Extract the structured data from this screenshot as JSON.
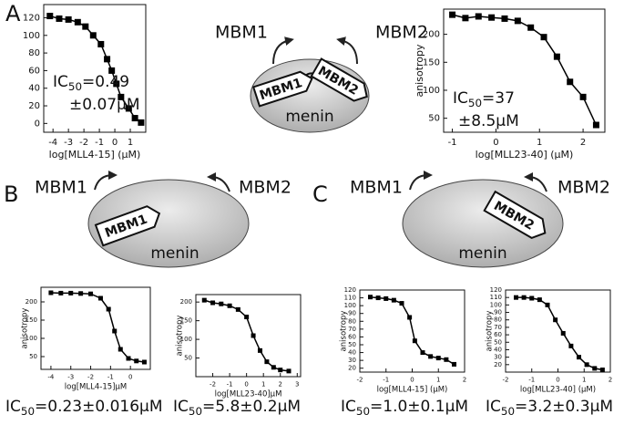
{
  "panels": [
    "A",
    "B",
    "C"
  ],
  "diagrams": [
    {
      "labels": [
        "MBM1",
        "MBM2"
      ],
      "body": "menin",
      "bound": [
        "MBM1",
        "MBM2"
      ]
    },
    {
      "labels": [
        "MBM1",
        "MBM2"
      ],
      "body": "menin",
      "bound": [
        "MBM1"
      ]
    },
    {
      "labels": [
        "MBM1",
        "MBM2"
      ],
      "body": "menin",
      "bound": [
        "MBM2"
      ]
    }
  ],
  "chart_data": [
    {
      "type": "line",
      "marker": "square",
      "color": "#000000",
      "xlabel": "log[MLL4-15] (μM)",
      "x": [
        -4.2,
        -3.6,
        -3.0,
        -2.4,
        -1.9,
        -1.4,
        -0.9,
        -0.5,
        -0.2,
        0.1,
        0.4,
        0.9,
        1.3,
        1.7
      ],
      "values": [
        122,
        119,
        118,
        115,
        110,
        100,
        90,
        73,
        60,
        45,
        30,
        17,
        6,
        1
      ],
      "xlim": [
        -4.6,
        2.0
      ],
      "ylim": [
        -10,
        135
      ],
      "xticks": [
        -4,
        -3,
        -2,
        -1,
        0,
        1
      ],
      "yticks": [
        0,
        20,
        40,
        60,
        80,
        100,
        120
      ],
      "annotation": {
        "prefix": "IC",
        "subscript": "50",
        "text": "=0.49",
        "line2": "±0.07μM"
      }
    },
    {
      "type": "line",
      "marker": "square",
      "color": "#000000",
      "xlabel": "log[MLL23-40] (μM)",
      "ylabel": "anisotropy",
      "x": [
        -1.0,
        -0.7,
        -0.4,
        -0.1,
        0.2,
        0.5,
        0.8,
        1.1,
        1.4,
        1.7,
        2.0,
        2.3
      ],
      "values": [
        235,
        229,
        232,
        230,
        228,
        224,
        212,
        195,
        160,
        115,
        88,
        38
      ],
      "xlim": [
        -1.2,
        2.5
      ],
      "ylim": [
        25,
        245
      ],
      "xticks": [
        -1,
        0,
        1,
        2
      ],
      "yticks": [
        50,
        100,
        150,
        200
      ],
      "annotation": {
        "prefix": "IC",
        "subscript": "50",
        "text": "=37",
        "line2": "±8.5μM"
      }
    },
    {
      "type": "line",
      "marker": "square",
      "color": "#000000",
      "xlabel": "log[MLL4-15]μM",
      "ylabel": "anisotropy",
      "x": [
        -4.0,
        -3.5,
        -3.0,
        -2.5,
        -2.0,
        -1.5,
        -1.1,
        -0.8,
        -0.5,
        -0.1,
        0.3,
        0.7
      ],
      "values": [
        225,
        224,
        224,
        223,
        222,
        210,
        180,
        120,
        70,
        45,
        38,
        35
      ],
      "xlim": [
        -4.5,
        1.0
      ],
      "ylim": [
        15,
        240
      ],
      "xticks": [
        -4,
        -3,
        -2,
        -1,
        0
      ],
      "yticks": [
        50,
        100,
        150,
        200
      ],
      "annotation": {
        "prefix": "IC",
        "subscript": "50",
        "text": "=0.23±0.016μM"
      }
    },
    {
      "type": "line",
      "marker": "square",
      "color": "#000000",
      "xlabel": "log[MLL23-40]μM",
      "ylabel": "anisotropy",
      "x": [
        -2.5,
        -2.0,
        -1.5,
        -1.0,
        -0.5,
        0.0,
        0.4,
        0.8,
        1.2,
        1.6,
        2.0,
        2.5
      ],
      "values": [
        205,
        198,
        195,
        190,
        180,
        160,
        110,
        70,
        40,
        25,
        18,
        15
      ],
      "xlim": [
        -3.0,
        3.2
      ],
      "ylim": [
        0,
        220
      ],
      "xticks": [
        -2,
        -1,
        0,
        1,
        2,
        3
      ],
      "yticks": [
        50,
        100,
        150,
        200
      ],
      "annotation": {
        "prefix": "IC",
        "subscript": "50",
        "text": "=5.8±0.2μM"
      }
    },
    {
      "type": "line",
      "marker": "square",
      "color": "#000000",
      "xlabel": "log[MLL4-15] (μM)",
      "ylabel": "anisotropy",
      "x": [
        -1.6,
        -1.3,
        -1.0,
        -0.7,
        -0.4,
        -0.1,
        0.1,
        0.4,
        0.7,
        1.0,
        1.3,
        1.6
      ],
      "values": [
        111,
        110,
        109,
        107,
        103,
        85,
        55,
        40,
        35,
        33,
        31,
        25
      ],
      "xlim": [
        -2,
        2
      ],
      "ylim": [
        15,
        120
      ],
      "xticks": [
        -2,
        -1,
        0,
        1,
        2
      ],
      "yticks": [
        20,
        30,
        40,
        50,
        60,
        70,
        80,
        90,
        100,
        110,
        120
      ],
      "annotation": {
        "prefix": "IC",
        "subscript": "50",
        "text": "=1.0±0.1μM"
      }
    },
    {
      "type": "line",
      "marker": "square",
      "color": "#000000",
      "xlabel": "log[MLL23-40] (μM)",
      "ylabel": "anisotropy",
      "x": [
        -1.6,
        -1.3,
        -1.0,
        -0.7,
        -0.4,
        -0.1,
        0.2,
        0.5,
        0.8,
        1.1,
        1.4,
        1.7
      ],
      "values": [
        110,
        110,
        109,
        107,
        100,
        80,
        62,
        45,
        30,
        20,
        15,
        13
      ],
      "xlim": [
        -2,
        2
      ],
      "ylim": [
        10,
        120
      ],
      "xticks": [
        -2,
        -1,
        0,
        1,
        2
      ],
      "yticks": [
        20,
        30,
        40,
        50,
        60,
        70,
        80,
        90,
        100,
        110,
        120
      ],
      "annotation": {
        "prefix": "IC",
        "subscript": "50",
        "text": "=3.2±0.3μM"
      }
    }
  ]
}
